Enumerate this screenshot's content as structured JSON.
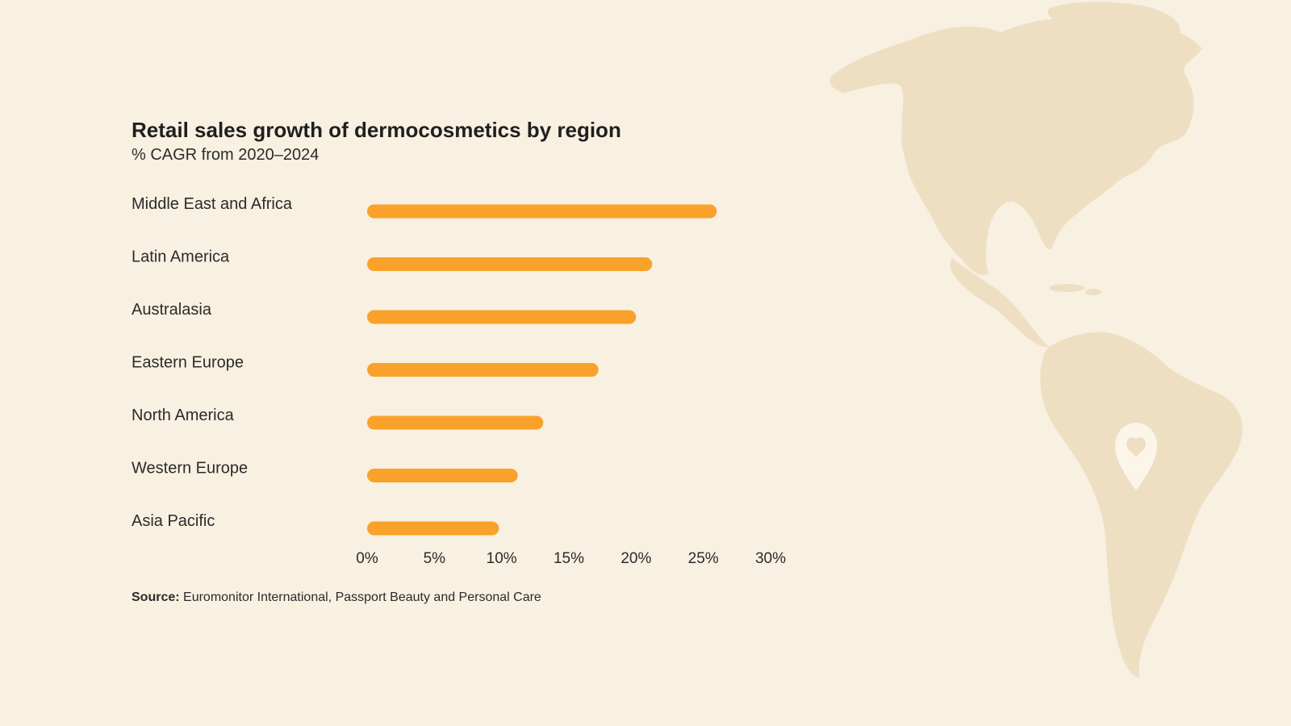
{
  "colors": {
    "background": "#f8f0e1",
    "bar": "#f9a12b",
    "map": "#eedfc3",
    "pin": "#fbf5ea"
  },
  "chart_data": {
    "type": "bar",
    "orientation": "horizontal",
    "title": "Retail sales growth of dermocosmetics by region",
    "subtitle": "% CAGR from 2020–2024",
    "categories": [
      "Middle East and Africa",
      "Latin America",
      "Australasia",
      "Eastern Europe",
      "North America",
      "Western Europe",
      "Asia Pacific"
    ],
    "values": [
      26,
      21.2,
      20,
      17.2,
      13.1,
      11.2,
      9.8
    ],
    "xlim": [
      0,
      30
    ],
    "xticks": [
      "0%",
      "5%",
      "10%",
      "15%",
      "20%",
      "25%",
      "30%"
    ],
    "grid": false,
    "legend": "none"
  },
  "source": {
    "label": "Source:",
    "text": " Euromonitor International, Passport Beauty and Personal Care"
  },
  "decoration": {
    "map_icon": "americas-map-icon",
    "pin_icon": "heart-location-pin-icon"
  }
}
